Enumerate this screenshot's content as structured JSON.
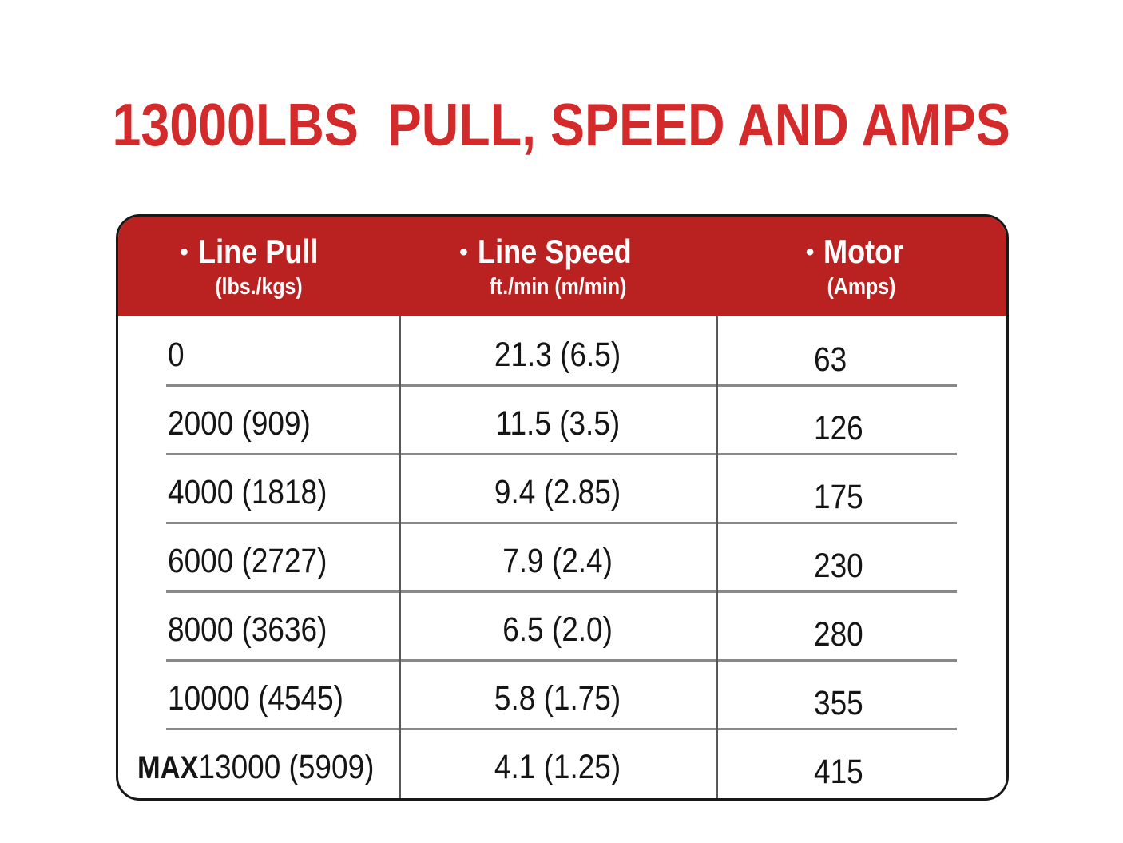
{
  "title": "13000LBS  PULL, SPEED AND AMPS",
  "icons": {
    "header_bullet": "•"
  },
  "colors": {
    "title_red": "#d32b2b",
    "header_red": "#ba2121",
    "border": "#191919",
    "row_separator": "#898989",
    "column_rule": "#585858",
    "header_text": "#ffffff",
    "body_text": "#151515"
  },
  "table": {
    "columns": [
      {
        "label": "Line Pull",
        "sub": "(lbs./kgs)"
      },
      {
        "label": "Line Speed",
        "sub": "ft./min (m/min)"
      },
      {
        "label": "Motor",
        "sub": "(Amps)"
      }
    ],
    "rows": [
      {
        "pull": "0",
        "speed": "21.3 (6.5)",
        "amps": "63"
      },
      {
        "pull": "2000 (909)",
        "speed": "11.5 (3.5)",
        "amps": "126"
      },
      {
        "pull": "4000 (1818)",
        "speed": "9.4 (2.85)",
        "amps": "175"
      },
      {
        "pull": "6000 (2727)",
        "speed": "7.9 (2.4)",
        "amps": "230"
      },
      {
        "pull": "8000 (3636)",
        "speed": "6.5 (2.0)",
        "amps": "280"
      },
      {
        "pull": "10000 (4545)",
        "speed": "5.8 (1.75)",
        "amps": "355"
      },
      {
        "pull_prefix": "MAX",
        "pull": "13000 (5909)",
        "speed": "4.1 (1.25)",
        "amps": "415"
      }
    ]
  },
  "chart_data": {
    "type": "table",
    "title": "13000LBS  PULL, SPEED AND AMPS",
    "columns": [
      "Line Pull (lbs./kgs)",
      "Line Speed ft./min (m/min)",
      "Motor (Amps)"
    ],
    "line_pull_lbs": [
      0,
      2000,
      4000,
      6000,
      8000,
      10000,
      13000
    ],
    "line_pull_kgs": [
      null,
      909,
      1818,
      2727,
      3636,
      4545,
      5909
    ],
    "line_speed_ft_min": [
      21.3,
      11.5,
      9.4,
      7.9,
      6.5,
      5.8,
      4.1
    ],
    "line_speed_m_min": [
      6.5,
      3.5,
      2.85,
      2.4,
      2.0,
      1.75,
      1.25
    ],
    "motor_amps": [
      63,
      126,
      175,
      230,
      280,
      355,
      415
    ],
    "notes": "Last line-pull row is the MAX rating"
  }
}
